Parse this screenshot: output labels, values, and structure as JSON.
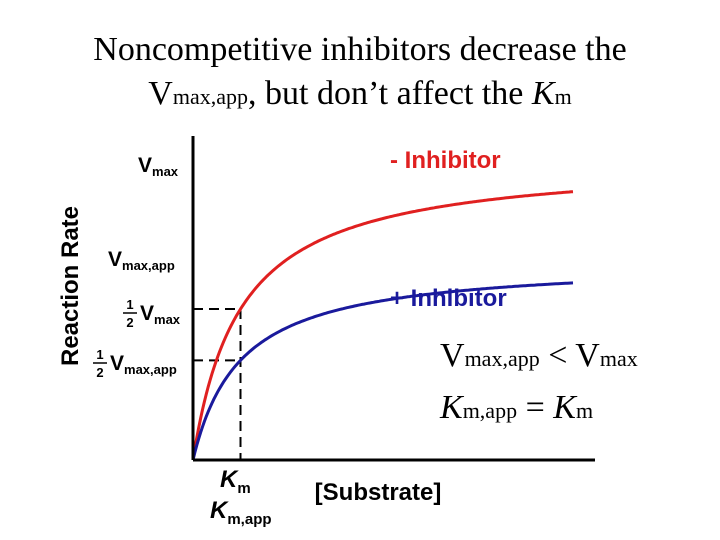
{
  "title": {
    "line1": "Noncompetitive inhibitors decrease the",
    "line2_v": "V",
    "line2_sub": "max,app",
    "line2_mid": ", but don’t affect the ",
    "line2_k": "K",
    "line2_ksub": "m"
  },
  "colors": {
    "no_inhibitor": "#e02020",
    "inhibitor": "#1a1a9c",
    "axis": "#000000"
  },
  "chart_data": {
    "type": "line",
    "ylabel": "Reaction Rate",
    "xlabel": "[Substrate]",
    "xlim": [
      0,
      12
    ],
    "ylim": [
      0,
      1.06
    ],
    "km": 1.5,
    "series": [
      {
        "name": "- Inhibitor",
        "vmax": 1.0,
        "color": "#e02020"
      },
      {
        "name": "+ Inhibitor",
        "vmax": 0.66,
        "color": "#1a1a9c"
      }
    ],
    "y_ticks": {
      "vmax": {
        "v": "V",
        "sub": "max"
      },
      "vmax_app": {
        "v": "V",
        "sub": "max,app"
      },
      "half_vmax": {
        "num": "1",
        "den": "2",
        "v": "V",
        "sub": "max"
      },
      "half_vmax_app": {
        "num": "1",
        "den": "2",
        "v": "V",
        "sub": "max,app"
      }
    },
    "x_ticks": {
      "km": {
        "k": "K",
        "sub": "m"
      },
      "km_app": {
        "k": "K",
        "sub": "m,app"
      }
    },
    "annotations": {
      "eq1": {
        "v1": "V",
        "sub1": "max,app",
        "op": " < ",
        "v2": "V",
        "sub2": "max"
      },
      "eq2": {
        "k1": "K",
        "sub1": "m,app",
        "op": " = ",
        "k2": "K",
        "sub2": "m"
      }
    }
  }
}
